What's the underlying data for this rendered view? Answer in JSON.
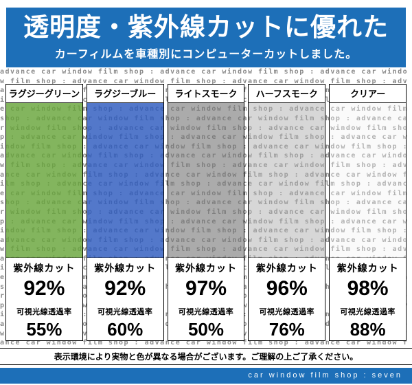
{
  "header": {
    "title": "透明度・紫外線カットに優れた",
    "subtitle": "カーフィルムを車種別にコンピューターカットしました。",
    "bg_color": "#1d6fb8"
  },
  "watermark": {
    "text": "advance car window film shop : ",
    "repeat": 110,
    "color": "#8a8a8a"
  },
  "panels": [
    {
      "name": "ラグジーグリーン",
      "swatch_color": "rgba(104,165,58,0.82)",
      "uv_label": "紫外線カット",
      "uv_value": "92%",
      "vlt_label": "可視光線透過率",
      "vlt_value": "55%"
    },
    {
      "name": "ラグジーブルー",
      "swatch_color": "rgba(45,90,190,0.82)",
      "uv_label": "紫外線カット",
      "uv_value": "92%",
      "vlt_label": "可視光線透過率",
      "vlt_value": "60%"
    },
    {
      "name": "ライトスモーク",
      "swatch_color": "rgba(120,120,120,0.62)",
      "uv_label": "紫外線カット",
      "uv_value": "97%",
      "vlt_label": "可視光線透過率",
      "vlt_value": "50%"
    },
    {
      "name": "ハーフスモーク",
      "swatch_color": "rgba(175,175,175,0.50)",
      "uv_label": "紫外線カット",
      "uv_value": "96%",
      "vlt_label": "可視光線透過率",
      "vlt_value": "76%"
    },
    {
      "name": "クリアー",
      "swatch_color": "rgba(242,242,242,0.38)",
      "uv_label": "紫外線カット",
      "uv_value": "98%",
      "vlt_label": "可視光線透過率",
      "vlt_value": "88%"
    }
  ],
  "footer": {
    "note": "表示環境により実物と色が異なる場合がございます。ご理解の上ご了承ください。",
    "brand": "car window film shop : seven",
    "bg_color": "#1d6fb8"
  }
}
